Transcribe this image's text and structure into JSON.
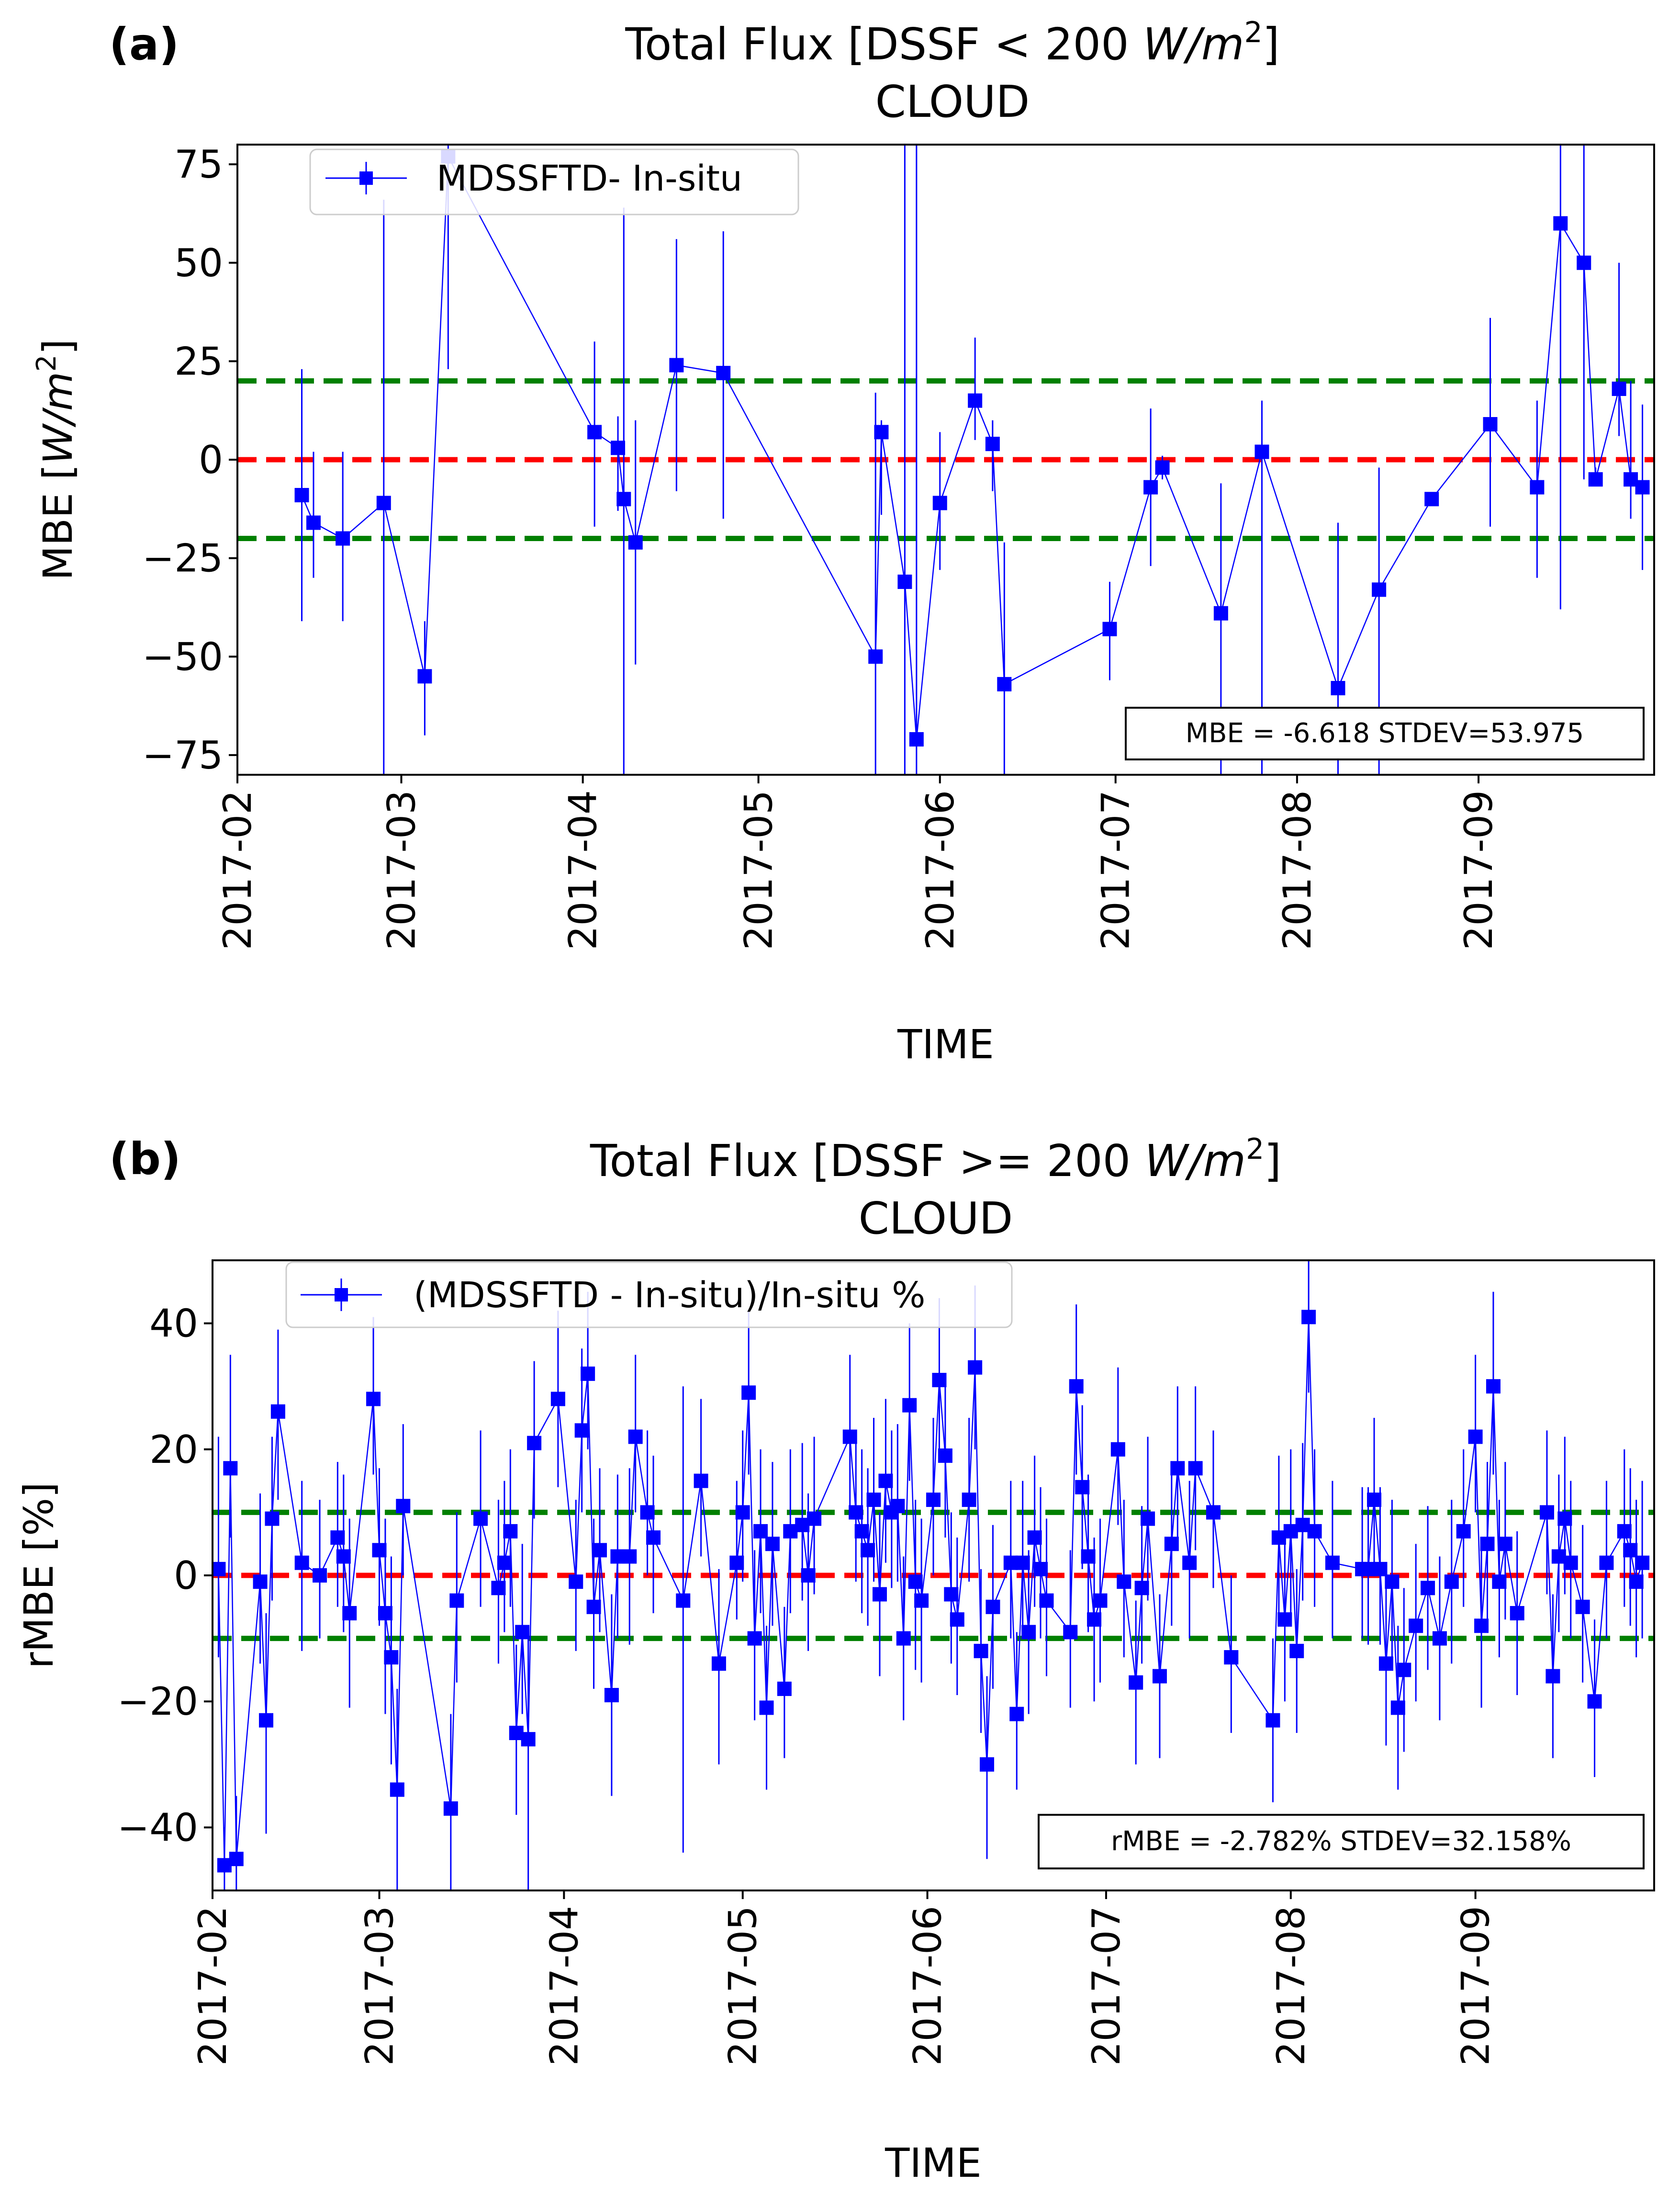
{
  "chart_data": [
    {
      "type": "scatter",
      "panel_label": "(a)",
      "title_prefix": "Total Flux  [DSSF < 200 ",
      "title_unit": "W/m",
      "title_sup": "2",
      "title_suffix": "]",
      "subtitle": "CLOUD",
      "xlabel": "TIME",
      "ylabel_prefix": "MBE [",
      "ylabel_unit": "W/m",
      "ylabel_sup": "2",
      "ylabel_suffix": "]",
      "ylim": [
        -80,
        80
      ],
      "xlim_days": [
        0,
        242
      ],
      "yticks": [
        -75,
        -50,
        -25,
        0,
        25,
        50,
        75
      ],
      "yticklabels": [
        "−75",
        "−50",
        "−25",
        "0",
        "25",
        "50",
        "75"
      ],
      "xticks_days": [
        0,
        28,
        59,
        89,
        120,
        150,
        181,
        212
      ],
      "xticklabels": [
        "2017-02",
        "2017-03",
        "2017-04",
        "2017-05",
        "2017-06",
        "2017-07",
        "2017-08",
        "2017-09"
      ],
      "reference_lines": [
        {
          "y": 20,
          "color": "#008000"
        },
        {
          "y": 0,
          "color": "#ff0000"
        },
        {
          "y": -20,
          "color": "#008000"
        }
      ],
      "legend": {
        "label": "MDSSFTD- In-situ",
        "placement": "upper-left"
      },
      "stats_text": "MBE = -6.618  STDEV=53.975",
      "series": [
        {
          "name": "MDSSFTD- In-situ",
          "color": "#0000ff",
          "x_days": [
            11,
            13,
            18,
            25,
            32,
            36,
            61,
            65,
            66,
            68,
            75,
            83,
            109,
            110,
            114,
            116,
            120,
            126,
            129,
            131,
            149,
            156,
            158,
            168,
            175,
            188,
            195,
            204,
            214,
            222,
            226,
            230,
            232,
            236,
            238,
            240
          ],
          "y": [
            -9,
            -16,
            -20,
            -11,
            -55,
            77,
            7,
            3,
            -10,
            -21,
            24,
            22,
            -50,
            7,
            -31,
            -71,
            -11,
            15,
            4,
            -57,
            -43,
            -7,
            -2,
            -39,
            2,
            -58,
            -33,
            -10,
            9,
            -7,
            60,
            50,
            -5,
            18,
            -5,
            -7
          ],
          "err_low": [
            -41,
            -30,
            -41,
            -80,
            -70,
            23,
            -17,
            -13,
            -80,
            -52,
            -8,
            -15,
            -80,
            -14,
            -80,
            -80,
            -28,
            5,
            -8,
            -80,
            -56,
            -27,
            -5,
            -80,
            -80,
            -80,
            -80,
            -10,
            -17,
            -30,
            -38,
            -5,
            -6,
            6,
            -15,
            -28
          ],
          "err_high": [
            23,
            2,
            2,
            66,
            -41,
            80,
            30,
            11,
            64,
            10,
            56,
            58,
            17,
            10,
            80,
            80,
            7,
            31,
            10,
            -21,
            -31,
            13,
            1,
            -6,
            15,
            -16,
            -2,
            -10,
            36,
            15,
            80,
            80,
            -2,
            50,
            20,
            14
          ]
        }
      ]
    },
    {
      "type": "scatter",
      "panel_label": "(b)",
      "title_prefix": "Total Flux  [DSSF >= 200 ",
      "title_unit": "W/m",
      "title_sup": "2",
      "title_suffix": "]",
      "subtitle": "CLOUD",
      "xlabel": "TIME",
      "ylabel_prefix": "rMBE [%]",
      "ylabel_unit": "",
      "ylabel_sup": "",
      "ylabel_suffix": "",
      "ylim": [
        -50,
        50
      ],
      "xlim_days": [
        0,
        242
      ],
      "yticks": [
        -40,
        -20,
        0,
        20,
        40
      ],
      "yticklabels": [
        "−40",
        "−20",
        "0",
        "20",
        "40"
      ],
      "xticks_days": [
        0,
        28,
        59,
        89,
        120,
        150,
        181,
        212
      ],
      "xticklabels": [
        "2017-02",
        "2017-03",
        "2017-04",
        "2017-05",
        "2017-06",
        "2017-07",
        "2017-08",
        "2017-09"
      ],
      "reference_lines": [
        {
          "y": 10,
          "color": "#008000"
        },
        {
          "y": 0,
          "color": "#ff0000"
        },
        {
          "y": -10,
          "color": "#008000"
        }
      ],
      "legend": {
        "label": "(MDSSFTD - In-situ)/In-situ %",
        "placement": "upper-left"
      },
      "stats_text": "rMBE = -2.782%   STDEV=32.158%",
      "series": [
        {
          "name": "(MDSSFTD - In-situ)/In-situ %",
          "color": "#0000ff",
          "x_days": [
            1,
            2,
            3,
            4,
            8,
            9,
            10,
            11,
            15,
            18,
            21,
            22,
            23,
            27,
            28,
            29,
            30,
            31,
            32,
            40,
            41,
            45,
            48,
            49,
            50,
            51,
            52,
            53,
            54,
            58,
            61,
            62,
            63,
            64,
            65,
            67,
            68,
            70,
            71,
            73,
            74,
            79,
            82,
            85,
            88,
            89,
            90,
            91,
            92,
            93,
            94,
            96,
            97,
            99,
            100,
            101,
            107,
            108,
            109,
            110,
            111,
            112,
            113,
            114,
            115,
            116,
            117,
            118,
            119,
            121,
            122,
            123,
            124,
            125,
            127,
            128,
            129,
            130,
            131,
            134,
            135,
            136,
            137,
            138,
            139,
            140,
            144,
            145,
            146,
            147,
            148,
            149,
            152,
            153,
            155,
            156,
            157,
            159,
            161,
            162,
            164,
            165,
            168,
            171,
            178,
            179,
            180,
            181,
            182,
            183,
            184,
            185,
            188,
            193,
            194,
            195,
            196,
            197,
            198,
            199,
            200,
            202,
            204,
            206,
            208,
            210,
            212,
            213,
            214,
            215,
            216,
            217,
            219,
            224,
            225,
            226,
            227,
            228,
            230,
            232,
            234,
            237,
            238,
            239,
            240
          ],
          "y": [
            1,
            -46,
            17,
            -45,
            -1,
            -23,
            9,
            26,
            2,
            0,
            6,
            3,
            -6,
            28,
            4,
            -6,
            -13,
            -34,
            11,
            -37,
            -4,
            9,
            -2,
            2,
            7,
            -25,
            -9,
            -26,
            21,
            28,
            -1,
            23,
            32,
            -5,
            4,
            -19,
            3,
            3,
            22,
            10,
            6,
            -4,
            15,
            -14,
            2,
            10,
            29,
            -10,
            7,
            -21,
            5,
            -18,
            7,
            8,
            0,
            9,
            22,
            10,
            7,
            4,
            12,
            -3,
            15,
            10,
            11,
            -10,
            27,
            -1,
            -4,
            12,
            31,
            19,
            -3,
            -7,
            12,
            33,
            -12,
            -30,
            -5,
            2,
            -22,
            2,
            -9,
            6,
            1,
            -4,
            -9,
            30,
            14,
            3,
            -7,
            -4,
            20,
            -1,
            -17,
            -2,
            9,
            -16,
            5,
            17,
            2,
            17,
            10,
            -13,
            -23,
            6,
            -7,
            7,
            -12,
            8,
            41,
            7,
            2,
            1,
            1,
            12,
            1,
            -14,
            -1,
            -21,
            -15,
            -8,
            -2,
            -10,
            -1,
            7,
            22,
            -8,
            5,
            30,
            -1,
            5,
            -6,
            10,
            -16,
            3,
            9,
            2,
            -5,
            -20,
            2,
            7,
            4,
            -1,
            2
          ],
          "err_low": [
            -13,
            -50,
            6,
            -50,
            -14,
            -41,
            -4,
            12,
            -12,
            -10,
            -5,
            -9,
            -21,
            16,
            -8,
            -22,
            -30,
            -50,
            0,
            -50,
            -17,
            -5,
            -14,
            -9,
            -5,
            -38,
            -22,
            -50,
            9,
            14,
            -12,
            10,
            20,
            -18,
            -9,
            -35,
            -10,
            -11,
            10,
            0,
            -6,
            -44,
            3,
            -30,
            -7,
            -1,
            16,
            -23,
            -6,
            -34,
            -8,
            -29,
            -6,
            -4,
            -12,
            -3,
            10,
            -1,
            -6,
            -8,
            -1,
            -16,
            2,
            -2,
            -1,
            -23,
            15,
            -15,
            -17,
            0,
            20,
            6,
            -14,
            -19,
            -1,
            20,
            -25,
            -45,
            -18,
            -10,
            -34,
            -10,
            -22,
            -5,
            -10,
            -16,
            -21,
            16,
            1,
            -9,
            -20,
            -17,
            8,
            -13,
            -30,
            -14,
            -4,
            -29,
            -8,
            5,
            -10,
            4,
            -2,
            -25,
            -36,
            -7,
            -20,
            -6,
            -25,
            -4,
            29,
            -5,
            -10,
            -10,
            -11,
            0,
            -11,
            -27,
            -13,
            -34,
            -28,
            -20,
            -15,
            -23,
            -14,
            -5,
            10,
            -21,
            -8,
            16,
            -13,
            -7,
            -19,
            -3,
            -29,
            -9,
            -3,
            -10,
            -17,
            -32,
            -10,
            -5,
            -8,
            -13,
            -10
          ],
          "err_high": [
            22,
            -40,
            35,
            -35,
            13,
            -6,
            22,
            39,
            15,
            12,
            18,
            16,
            9,
            41,
            17,
            9,
            3,
            -18,
            24,
            -22,
            10,
            23,
            12,
            15,
            20,
            -11,
            5,
            -10,
            34,
            42,
            12,
            36,
            45,
            9,
            17,
            -3,
            16,
            17,
            35,
            23,
            19,
            30,
            28,
            1,
            15,
            23,
            42,
            4,
            20,
            -8,
            18,
            -5,
            20,
            21,
            13,
            22,
            35,
            23,
            20,
            17,
            25,
            10,
            28,
            23,
            24,
            3,
            40,
            12,
            9,
            25,
            44,
            32,
            10,
            6,
            25,
            46,
            1,
            -16,
            8,
            15,
            -9,
            15,
            4,
            19,
            14,
            9,
            4,
            43,
            27,
            16,
            6,
            9,
            33,
            12,
            -4,
            11,
            22,
            -3,
            18,
            30,
            15,
            30,
            23,
            0,
            -10,
            19,
            6,
            20,
            1,
            21,
            50,
            20,
            15,
            14,
            14,
            25,
            14,
            -1,
            12,
            -8,
            -2,
            5,
            11,
            3,
            12,
            20,
            35,
            5,
            18,
            45,
            12,
            18,
            7,
            23,
            -3,
            16,
            22,
            15,
            8,
            -7,
            15,
            20,
            17,
            12,
            15
          ]
        }
      ]
    }
  ]
}
